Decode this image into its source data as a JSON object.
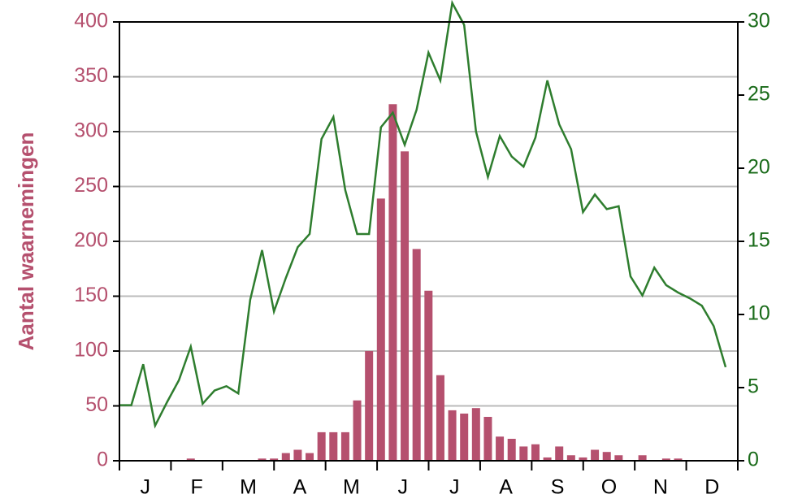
{
  "chart_data": {
    "type": "combo",
    "y_label": "Aantal waarnemingen",
    "months": [
      "J",
      "F",
      "M",
      "A",
      "M",
      "J",
      "J",
      "A",
      "S",
      "O",
      "N",
      "D"
    ],
    "categories": [
      null,
      null,
      null,
      null,
      null,
      null,
      null,
      null,
      null,
      null,
      null,
      null,
      null,
      null,
      null,
      null,
      null,
      null,
      null,
      null,
      null,
      null,
      null,
      null,
      null,
      null,
      null,
      null,
      null,
      null,
      null,
      null,
      null,
      null,
      null,
      null,
      null,
      null,
      null,
      null,
      null,
      null,
      null,
      null,
      null,
      null,
      null,
      null,
      null,
      null,
      null,
      null
    ],
    "series": [
      {
        "type": "bar",
        "color": "#b5506e",
        "values": [
          0,
          0,
          0,
          0,
          0,
          0,
          2,
          0,
          0,
          0,
          0,
          0,
          2,
          2,
          7,
          10,
          7,
          26,
          26,
          26,
          55,
          100,
          239,
          325,
          282,
          193,
          155,
          78,
          46,
          43,
          48,
          40,
          22,
          20,
          13,
          15,
          3,
          13,
          5,
          3,
          10,
          8,
          5,
          0,
          5,
          0,
          2,
          2,
          0,
          0,
          0,
          0
        ]
      },
      {
        "type": "line",
        "color": "#2e7d2e",
        "axis": "y2",
        "values": [
          3.8,
          3.8,
          6.6,
          2.4,
          4,
          5.5,
          7.8,
          3.9,
          4.8,
          5.1,
          4.6,
          11,
          14.4,
          10.2,
          12.5,
          14.6,
          15.5,
          22,
          23.5,
          18.5,
          15.5,
          15.5,
          22.8,
          23.8,
          21.6,
          24,
          27.9,
          26,
          31.3,
          29.8,
          22.5,
          19.4,
          22.2,
          20.8,
          20.1,
          22.1,
          26,
          23,
          21.3,
          17,
          18.2,
          17.2,
          17.4,
          12.6,
          11.3,
          13.2,
          12,
          11.5,
          11.1,
          10.6,
          9.2,
          6.4
        ]
      }
    ],
    "ylim": [
      0,
      400
    ],
    "yticks": [
      0,
      50,
      100,
      150,
      200,
      250,
      300,
      350,
      400
    ],
    "y2lim": [
      0,
      30
    ],
    "y2ticks": [
      0,
      5,
      10,
      15,
      20,
      25,
      30
    ],
    "grid": true,
    "y_color": "#b5506e",
    "y2_color": "#1a6b1a"
  }
}
